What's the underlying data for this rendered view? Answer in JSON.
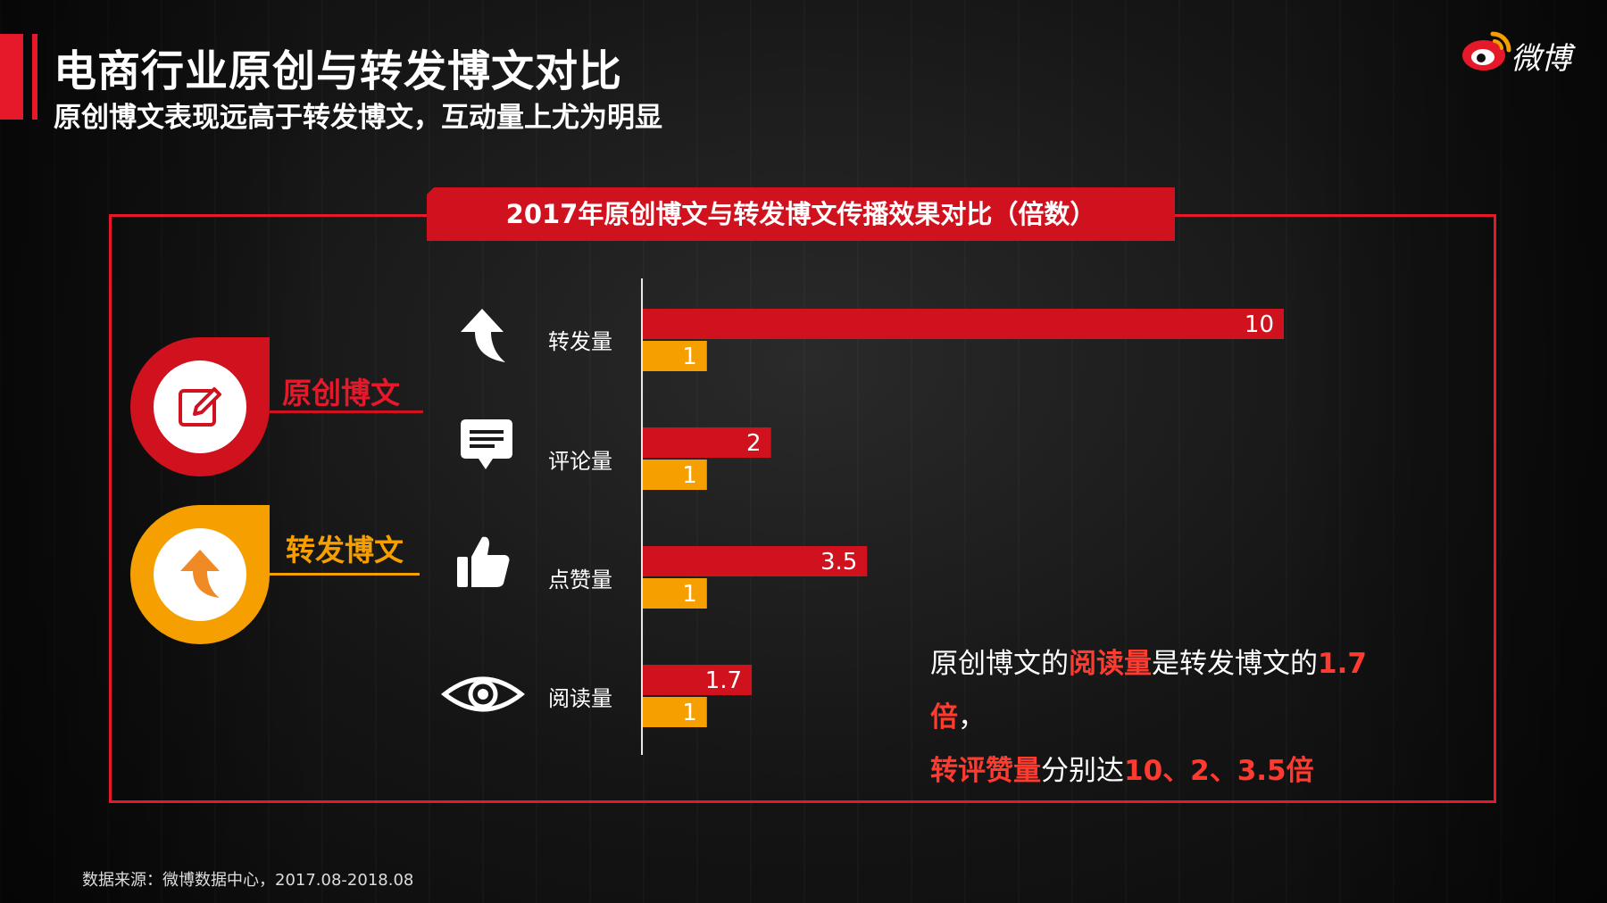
{
  "header": {
    "title": "电商行业原创与转发博文对比",
    "subtitle": "原创博文表现远高于转发博文，互动量上尤为明显"
  },
  "logo": {
    "text": "微博"
  },
  "panel": {
    "heading": "2017年原创博文与转发博文传播效果对比（倍数）"
  },
  "legend": [
    {
      "label": "原创博文",
      "color": "#d0121f",
      "icon": "edit-icon"
    },
    {
      "label": "转发博文",
      "color": "#f5a000",
      "icon": "arrow-up-icon"
    }
  ],
  "categories": [
    {
      "label": "转发量",
      "icon": "arrow-up-icon"
    },
    {
      "label": "评论量",
      "icon": "comment-icon"
    },
    {
      "label": "点赞量",
      "icon": "thumbs-up-icon"
    },
    {
      "label": "阅读量",
      "icon": "eye-icon"
    }
  ],
  "chart_data": {
    "type": "bar",
    "orientation": "horizontal",
    "title": "2017年原创博文与转发博文传播效果对比（倍数）",
    "categories": [
      "转发量",
      "评论量",
      "点赞量",
      "阅读量"
    ],
    "series": [
      {
        "name": "原创博文",
        "color": "#d0121f",
        "values": [
          10,
          2,
          3.5,
          1.7
        ],
        "labels": [
          "10",
          "2",
          "3.5",
          "1.7"
        ]
      },
      {
        "name": "转发博文",
        "color": "#f5a000",
        "values": [
          1,
          1,
          1,
          1
        ],
        "labels": [
          "1",
          "1",
          "1",
          "1"
        ]
      }
    ],
    "xlim": [
      0,
      10
    ],
    "grid": false
  },
  "note": {
    "line1_a": "原创博文的",
    "line1_b": "阅读量",
    "line1_c": "是转发博文的",
    "line1_d": "1.7",
    "line2_a": "倍",
    "line2_b": "，",
    "line3_a": "转评赞量",
    "line3_b": "分别达",
    "line3_c": "10、2、3.5倍"
  },
  "footer": {
    "source": "数据来源：微博数据中心，2017.08-2018.08"
  }
}
